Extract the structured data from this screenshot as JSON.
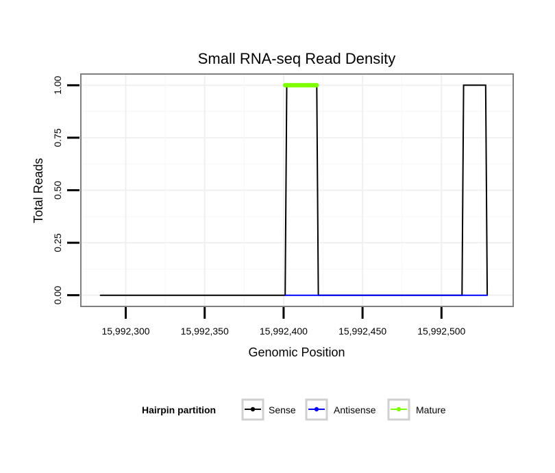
{
  "chart_data": {
    "type": "line",
    "title": "Small RNA-seq Read Density",
    "xlabel": "Genomic Position",
    "ylabel": "Total Reads",
    "xlim": [
      15992272,
      15992545
    ],
    "ylim": [
      -0.05,
      1.05
    ],
    "x_ticks": [
      15992300,
      15992350,
      15992400,
      15992450,
      15992500
    ],
    "x_tick_labels": [
      "15,992,300",
      "15,992,350",
      "15,992,400",
      "15,992,450",
      "15,992,500"
    ],
    "y_ticks": [
      0,
      0.25,
      0.5,
      0.75,
      1.0
    ],
    "y_tick_labels": [
      "0.00",
      "0.25",
      "0.50",
      "0.75",
      "1.00"
    ],
    "grid": true,
    "legend": {
      "title": "Hairpin partition",
      "placement": "bottom",
      "entries": [
        "Sense",
        "Antisense",
        "Mature"
      ]
    },
    "series": [
      {
        "name": "Sense",
        "color": "#000000",
        "x": [
          15992284,
          15992401,
          15992402,
          15992421,
          15992422,
          15992513,
          15992514,
          15992528,
          15992529
        ],
        "y": [
          0,
          0,
          1,
          1,
          0,
          0,
          1,
          1,
          0
        ]
      },
      {
        "name": "Antisense",
        "color": "#0000ff",
        "x": [
          15992401,
          15992422,
          15992514,
          15992529
        ],
        "y": [
          0,
          0,
          0,
          0
        ]
      },
      {
        "name": "Mature",
        "color": "#7fff00",
        "x": [
          15992401,
          15992421
        ],
        "y": [
          1,
          1
        ]
      }
    ]
  }
}
